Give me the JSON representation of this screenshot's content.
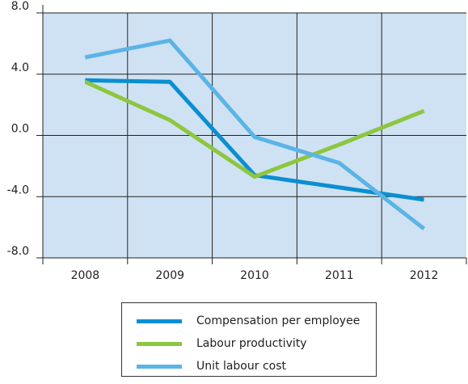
{
  "chart_data": {
    "type": "line",
    "title": "",
    "xlabel": "",
    "ylabel": "",
    "categories": [
      "2008",
      "2009",
      "2010",
      "2011",
      "2012"
    ],
    "ylim": [
      -8.0,
      8.0
    ],
    "yticks": [
      "8.0",
      "4.0",
      "0.0",
      "-4.0",
      "-8.0"
    ],
    "grid": true,
    "legend_position": "bottom",
    "plot_background": "#cfe2f3",
    "series": [
      {
        "name": "Compensation per employee",
        "color": "#0a8fd1",
        "values": [
          3.6,
          3.5,
          -2.6,
          -3.4,
          -4.2
        ]
      },
      {
        "name": "Labour productivity",
        "color": "#8dc63f",
        "values": [
          3.5,
          1.0,
          -2.7,
          -0.6,
          1.6
        ]
      },
      {
        "name": "Unit labour cost",
        "color": "#5bb4e5",
        "values": [
          5.1,
          6.2,
          -0.1,
          -1.8,
          -6.1
        ]
      }
    ]
  }
}
